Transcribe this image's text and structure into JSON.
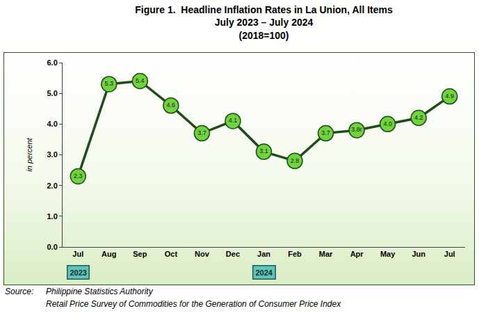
{
  "chart_data": {
    "type": "line",
    "title": [
      "Figure 1.  Headline Inflation Rates in La Union, All Items",
      "July 2023 – July 2024",
      "(2018=100)"
    ],
    "y_label": "in percent",
    "categories": [
      "Jul",
      "Aug",
      "Sep",
      "Oct",
      "Nov",
      "Dec",
      "Jan",
      "Feb",
      "Mar",
      "Apr",
      "May",
      "Jun",
      "Jul"
    ],
    "values": [
      2.3,
      5.3,
      5.4,
      4.6,
      3.7,
      4.1,
      3.1,
      2.8,
      3.7,
      3.8,
      4.0,
      4.2,
      4.9
    ],
    "value_labels": [
      "2.3",
      "5.3",
      "5.4",
      "4.6",
      "3.7",
      "4.1",
      "3.1",
      "2.8",
      "3.7",
      "3.8r",
      "4.0",
      "4.2",
      "4.9"
    ],
    "data_labels": true,
    "color": "#1f4d1a",
    "marker": "circle",
    "ylim": [
      0,
      6
    ],
    "yticks": [
      {
        "value": 0,
        "label": "0.0"
      },
      {
        "value": 1,
        "label": "1.0"
      },
      {
        "value": 2,
        "label": "2.0"
      },
      {
        "value": 3,
        "label": "3.0"
      },
      {
        "value": 4,
        "label": "4.0"
      },
      {
        "value": 5,
        "label": "5.0"
      },
      {
        "value": 6,
        "label": "6.0"
      }
    ],
    "grid": false,
    "annotations": [
      {
        "text": "2023",
        "x": 0
      },
      {
        "text": "2024",
        "x": 6
      }
    ],
    "source": {
      "label": "Source:",
      "lines": [
        "Philippine Statistics Authority",
        "Retail Price Survey of Commodities for the Generation of Consumer Price Index"
      ]
    }
  }
}
